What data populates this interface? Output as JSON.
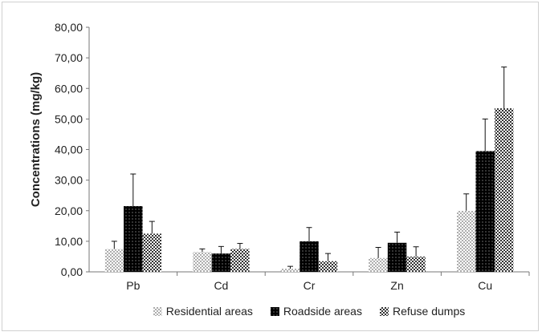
{
  "chart_data": {
    "type": "bar",
    "title": "",
    "xlabel": "",
    "ylabel": "Concentrations (mg/kg)",
    "categories": [
      "Pb",
      "Cd",
      "Cr",
      "Zn",
      "Cu"
    ],
    "series": [
      {
        "name": "Residential areas",
        "pattern": "dotted",
        "values": [
          7.5,
          6.5,
          1.0,
          4.5,
          20.0
        ],
        "errors": [
          2.5,
          1.0,
          0.8,
          3.5,
          5.5
        ]
      },
      {
        "name": "Roadside areas",
        "pattern": "black-dots",
        "values": [
          21.5,
          6.0,
          10.0,
          9.5,
          39.5
        ],
        "errors": [
          10.5,
          2.3,
          4.5,
          3.5,
          10.5
        ]
      },
      {
        "name": "Refuse dumps",
        "pattern": "checker",
        "values": [
          12.5,
          7.5,
          3.5,
          5.0,
          53.5
        ],
        "errors": [
          4.0,
          1.8,
          2.5,
          3.2,
          13.5
        ]
      }
    ],
    "yticks": [
      "0,00",
      "10,00",
      "20,00",
      "30,00",
      "40,00",
      "50,00",
      "60,00",
      "70,00",
      "80,00"
    ],
    "ylim": [
      0,
      80
    ],
    "grid": false,
    "error_bars": true,
    "legend_position": "bottom"
  }
}
